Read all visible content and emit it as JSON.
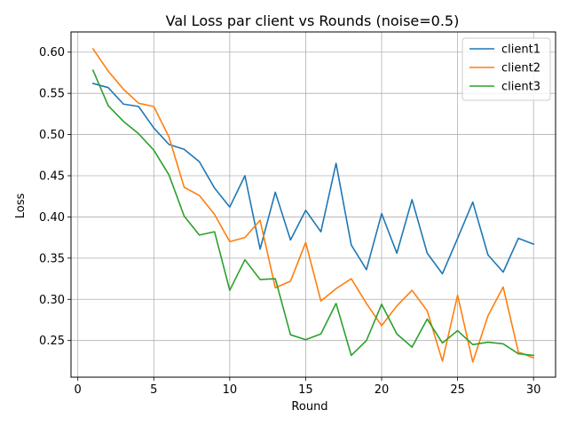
{
  "chart_data": {
    "type": "line",
    "title": "Val Loss par client vs Rounds (noise=0.5)",
    "xlabel": "Round",
    "ylabel": "Loss",
    "xlim": [
      -0.45,
      31.45
    ],
    "ylim": [
      0.2055,
      0.6245
    ],
    "xticks": [
      0,
      5,
      10,
      15,
      20,
      25,
      30
    ],
    "xtick_labels": [
      "0",
      "5",
      "10",
      "15",
      "20",
      "25",
      "30"
    ],
    "yticks": [
      0.25,
      0.3,
      0.35,
      0.4,
      0.45,
      0.5,
      0.55,
      0.6
    ],
    "ytick_labels": [
      "0.25",
      "0.30",
      "0.35",
      "0.40",
      "0.45",
      "0.50",
      "0.55",
      "0.60"
    ],
    "grid": true,
    "legend_position": "top-right",
    "x": [
      1,
      2,
      3,
      4,
      5,
      6,
      7,
      8,
      9,
      10,
      11,
      12,
      13,
      14,
      15,
      16,
      17,
      18,
      19,
      20,
      21,
      22,
      23,
      24,
      25,
      26,
      27,
      28,
      29,
      30
    ],
    "series": [
      {
        "name": "client1",
        "color": "#1f77b4",
        "values": [
          0.562,
          0.557,
          0.537,
          0.534,
          0.508,
          0.488,
          0.482,
          0.467,
          0.435,
          0.412,
          0.45,
          0.361,
          0.43,
          0.372,
          0.408,
          0.382,
          0.465,
          0.366,
          0.336,
          0.404,
          0.356,
          0.421,
          0.356,
          0.331,
          0.374,
          0.418,
          0.354,
          0.333,
          0.374,
          0.367
        ]
      },
      {
        "name": "client2",
        "color": "#ff7f0e",
        "values": [
          0.604,
          0.577,
          0.555,
          0.538,
          0.534,
          0.497,
          0.436,
          0.426,
          0.403,
          0.37,
          0.375,
          0.396,
          0.314,
          0.322,
          0.369,
          0.298,
          0.313,
          0.325,
          0.295,
          0.268,
          0.292,
          0.311,
          0.286,
          0.225,
          0.305,
          0.224,
          0.28,
          0.315,
          0.236,
          0.229
        ]
      },
      {
        "name": "client3",
        "color": "#2ca02c",
        "values": [
          0.578,
          0.535,
          0.516,
          0.501,
          0.481,
          0.451,
          0.401,
          0.378,
          0.382,
          0.311,
          0.348,
          0.324,
          0.325,
          0.257,
          0.251,
          0.258,
          0.295,
          0.232,
          0.25,
          0.294,
          0.258,
          0.242,
          0.276,
          0.247,
          0.262,
          0.245,
          0.248,
          0.246,
          0.234,
          0.232
        ]
      }
    ]
  }
}
